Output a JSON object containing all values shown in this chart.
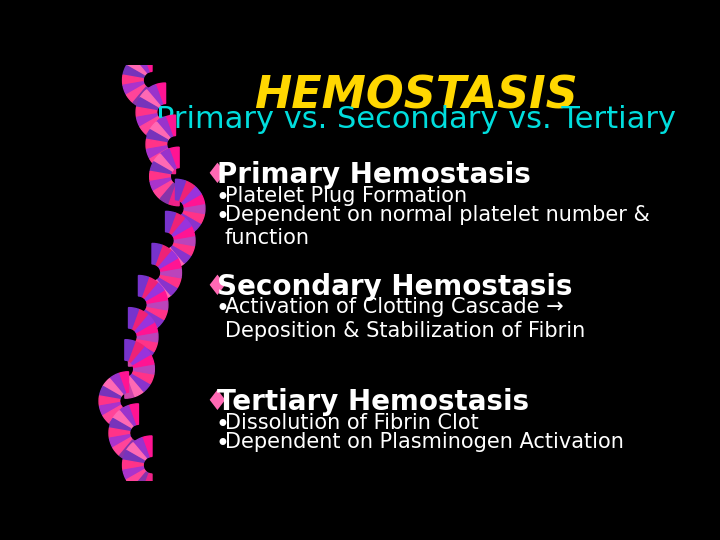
{
  "background_color": "#000000",
  "title": "HEMOSTASIS",
  "title_color": "#FFD700",
  "title_fontsize": 32,
  "subtitle": "Primary vs. Secondary vs. Tertiary",
  "subtitle_color": "#00DDDD",
  "subtitle_fontsize": 22,
  "main_bullet_color": "#FFFFFF",
  "main_bullet_fontsize": 20,
  "sub_bullet_color": "#FFFFFF",
  "sub_bullet_fontsize": 15,
  "main_bullet_marker": "♦",
  "main_bullet_marker_color": "#FF69B4",
  "sub_bullet_marker": "•",
  "sections": [
    {
      "header": "Primary Hemostasis",
      "bullets": [
        "Platelet Plug Formation",
        "Dependent on normal platelet number &\nfunction"
      ]
    },
    {
      "header": "Secondary Hemostasis",
      "bullets": [
        "Activation of Clotting Cascade →\nDeposition & Stabilization of Fibrin"
      ]
    },
    {
      "header": "Tertiary Hemostasis",
      "bullets": [
        "Dissolution of Fibrin Clot",
        "Dependent on Plasminogen Activation"
      ]
    }
  ],
  "fan_colors": [
    "#FF1493",
    "#CC44BB",
    "#9933CC",
    "#BB44AA",
    "#FF69B4",
    "#8833BB",
    "#DD2288",
    "#7722AA",
    "#FF3388",
    "#AA44CC",
    "#EE1177",
    "#6633BB",
    "#FF4499",
    "#BB33AA",
    "#9944DD",
    "#CC2299"
  ]
}
